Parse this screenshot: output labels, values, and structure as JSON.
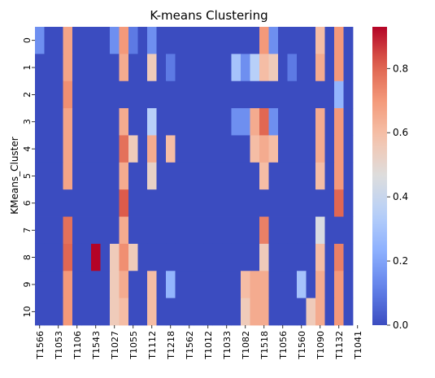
{
  "chart_data": {
    "type": "heatmap",
    "title": "K-means Clustering",
    "xlabel": "",
    "ylabel": "KMeans_Cluster",
    "colormap": "coolwarm",
    "colorbar": {
      "min": 0.0,
      "max": 0.93,
      "ticks": [
        "0.0",
        "0.2",
        "0.4",
        "0.6",
        "0.8"
      ],
      "tick_values": [
        0,
        0.2,
        0.4,
        0.6,
        0.8
      ]
    },
    "rows": [
      "0",
      "1",
      "2",
      "3",
      "4",
      "5",
      "6",
      "7",
      "8",
      "9",
      "10"
    ],
    "columns_count": 34,
    "x_tick_labels": [
      "T1566",
      "T1053",
      "T1106",
      "T1543",
      "T1027",
      "T1055",
      "T1112",
      "T1218",
      "T1562",
      "T1012",
      "T1033",
      "T1082",
      "T1518",
      "T1056",
      "T1560",
      "T1090",
      "T1132",
      "T1041"
    ],
    "values": [
      [
        0.15,
        0,
        0,
        0.67,
        0,
        0,
        0,
        0,
        0.15,
        0.7,
        0.1,
        0,
        0.15,
        0,
        0,
        0,
        0,
        0,
        0,
        0,
        0,
        0,
        0,
        0,
        0.7,
        0.15,
        0,
        0,
        0,
        0,
        0.6,
        0,
        0.7,
        0
      ],
      [
        0,
        0,
        0,
        0.67,
        0,
        0,
        0,
        0,
        0,
        0.65,
        0,
        0,
        0.55,
        0,
        0.1,
        0,
        0,
        0,
        0,
        0,
        0,
        0.3,
        0.15,
        0.35,
        0.6,
        0.55,
        0,
        0.1,
        0,
        0,
        0.65,
        0,
        0.7,
        0
      ],
      [
        0,
        0,
        0,
        0.72,
        0,
        0,
        0,
        0,
        0,
        0,
        0,
        0,
        0,
        0,
        0,
        0,
        0,
        0,
        0,
        0,
        0,
        0,
        0,
        0,
        0,
        0,
        0,
        0,
        0,
        0,
        0,
        0,
        0.25,
        0
      ],
      [
        0,
        0,
        0,
        0.67,
        0,
        0,
        0,
        0,
        0,
        0.65,
        0,
        0,
        0.35,
        0,
        0,
        0,
        0,
        0,
        0,
        0,
        0,
        0.15,
        0.15,
        0.65,
        0.8,
        0.15,
        0,
        0,
        0,
        0,
        0.65,
        0,
        0.7,
        0
      ],
      [
        0,
        0,
        0,
        0.67,
        0,
        0,
        0,
        0,
        0,
        0.78,
        0.55,
        0,
        0.65,
        0,
        0.6,
        0,
        0,
        0,
        0,
        0,
        0,
        0,
        0,
        0.6,
        0.65,
        0.6,
        0,
        0,
        0,
        0,
        0.65,
        0,
        0.7,
        0
      ],
      [
        0,
        0,
        0,
        0.67,
        0,
        0,
        0,
        0,
        0,
        0.65,
        0,
        0,
        0.52,
        0,
        0,
        0,
        0,
        0,
        0,
        0,
        0,
        0,
        0,
        0,
        0.6,
        0,
        0,
        0,
        0,
        0,
        0.6,
        0,
        0.7,
        0
      ],
      [
        0,
        0,
        0,
        0,
        0,
        0,
        0,
        0,
        0,
        0.82,
        0,
        0,
        0,
        0,
        0,
        0,
        0,
        0,
        0,
        0,
        0,
        0,
        0,
        0,
        0,
        0,
        0,
        0,
        0,
        0,
        0,
        0,
        0.8,
        0
      ],
      [
        0,
        0,
        0,
        0.78,
        0,
        0,
        0,
        0,
        0,
        0.65,
        0,
        0,
        0,
        0,
        0,
        0,
        0,
        0,
        0,
        0,
        0,
        0,
        0,
        0,
        0.75,
        0,
        0,
        0,
        0,
        0,
        0.45,
        0,
        0,
        0
      ],
      [
        0,
        0,
        0,
        0.8,
        0,
        0,
        0.93,
        0,
        0.55,
        0.72,
        0.55,
        0,
        0,
        0,
        0,
        0,
        0,
        0,
        0,
        0,
        0,
        0,
        0,
        0,
        0.55,
        0,
        0,
        0,
        0,
        0,
        0.6,
        0,
        0.75,
        0
      ],
      [
        0,
        0,
        0,
        0.7,
        0,
        0,
        0,
        0,
        0.55,
        0.65,
        0,
        0,
        0.6,
        0,
        0.25,
        0,
        0,
        0,
        0,
        0,
        0,
        0,
        0.6,
        0.65,
        0.65,
        0,
        0,
        0,
        0.3,
        0,
        0.65,
        0,
        0.7,
        0
      ],
      [
        0,
        0,
        0,
        0.7,
        0,
        0,
        0,
        0,
        0.55,
        0.6,
        0,
        0,
        0.6,
        0,
        0,
        0,
        0,
        0,
        0,
        0,
        0,
        0,
        0.55,
        0.65,
        0.65,
        0,
        0,
        0,
        0,
        0.55,
        0.65,
        0,
        0.7,
        0
      ]
    ]
  }
}
